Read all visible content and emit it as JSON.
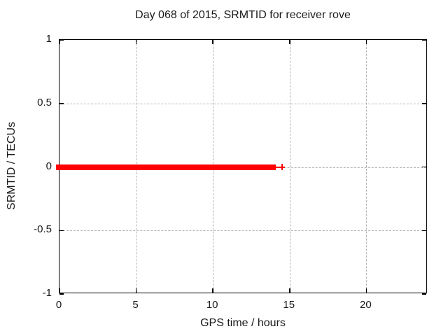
{
  "chart_data": {
    "type": "scatter",
    "title": "Day 068 of 2015, SRMTID for receiver rove",
    "xlabel": "GPS time / hours",
    "ylabel": "SRMTID / TECUs",
    "xlim": [
      0,
      24
    ],
    "ylim": [
      -1,
      1
    ],
    "xticks": [
      0,
      5,
      10,
      15,
      20
    ],
    "xtick_labels": [
      "0",
      "5",
      "10",
      "15",
      "20"
    ],
    "yticks": [
      1,
      0.5,
      0,
      -0.5,
      -1
    ],
    "ytick_labels": [
      "1",
      "0.5",
      "0",
      "-0.5",
      "-1"
    ],
    "grid": "dashed, at major ticks",
    "legend": "none",
    "series": [
      {
        "name": "SRMTID",
        "marker": "plus",
        "color": "#ff0000",
        "description": "Dense run of points at SRMTID = 0 TECUs from 0 h to ~14.1 h (markers overlap into a solid band), one partly separated point at ~14.2 h and one isolated point at ~14.5 h",
        "dense_segment": {
          "x_start": 0,
          "x_end": 14.1,
          "y": 0
        },
        "sparse_points": [
          {
            "x": 14.2,
            "y": 0,
            "style": "dash"
          },
          {
            "x": 14.5,
            "y": 0,
            "style": "plus"
          }
        ]
      }
    ]
  },
  "colors": {
    "background": "#ffffff",
    "border": "#000000",
    "grid": "#b5b5b5",
    "text": "#1a1a1a",
    "series": "#ff0000"
  }
}
